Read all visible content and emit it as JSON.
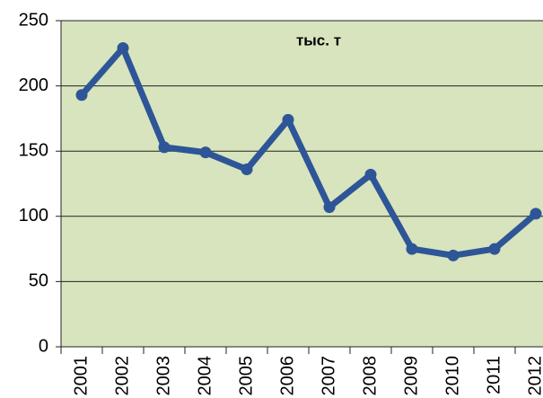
{
  "chart_data": {
    "type": "line",
    "title": "тыс. т",
    "categories": [
      "2001",
      "2002",
      "2003",
      "2004",
      "2005",
      "2006",
      "2007",
      "2008",
      "2009",
      "2010",
      "2011",
      "2012"
    ],
    "series": [
      {
        "name": "тыс. т",
        "color": "#2e5597",
        "values": [
          193,
          229,
          153,
          149,
          136,
          174,
          107,
          132,
          75,
          70,
          75,
          102
        ]
      }
    ],
    "ylim": [
      0,
      250
    ],
    "yticks": [
      0,
      50,
      100,
      150,
      200,
      250
    ],
    "grid": true,
    "background": "#d7e4bd"
  }
}
